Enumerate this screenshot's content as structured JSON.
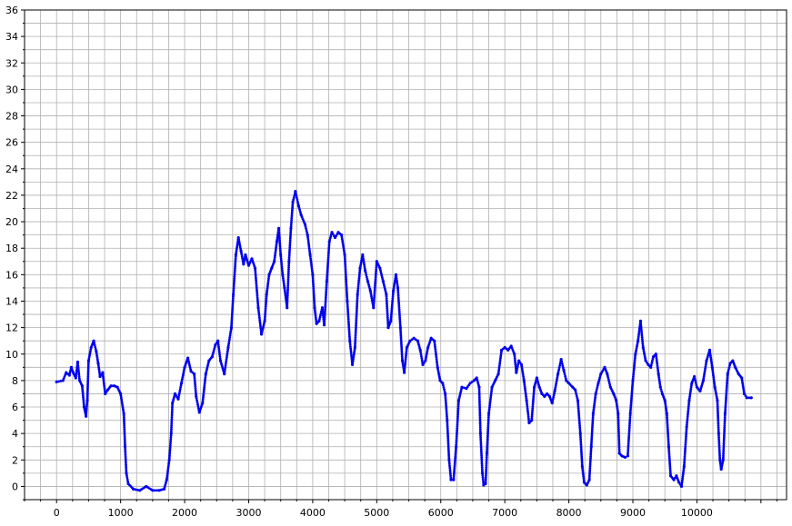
{
  "chart_data": {
    "type": "scatter",
    "title": "",
    "xlabel": "",
    "ylabel": "",
    "xlim": [
      -500,
      11400
    ],
    "ylim": [
      -1,
      36
    ],
    "grid": true,
    "x_ticks": [
      0,
      1000,
      2000,
      3000,
      4000,
      5000,
      6000,
      7000,
      8000,
      9000,
      10000
    ],
    "y_ticks": [
      0,
      2,
      4,
      6,
      8,
      10,
      12,
      14,
      16,
      18,
      20,
      22,
      24,
      26,
      28,
      30,
      32,
      34,
      36
    ],
    "series": [
      {
        "color": "#0000ee",
        "points": [
          [
            0,
            7.9
          ],
          [
            100,
            8.0
          ],
          [
            150,
            8.6
          ],
          [
            200,
            8.4
          ],
          [
            230,
            9.0
          ],
          [
            260,
            8.6
          ],
          [
            300,
            8.2
          ],
          [
            330,
            9.4
          ],
          [
            360,
            8.0
          ],
          [
            400,
            7.6
          ],
          [
            430,
            6.0
          ],
          [
            460,
            5.3
          ],
          [
            480,
            6.5
          ],
          [
            500,
            9.5
          ],
          [
            540,
            10.5
          ],
          [
            580,
            11.0
          ],
          [
            620,
            10.2
          ],
          [
            650,
            9.3
          ],
          [
            680,
            8.3
          ],
          [
            720,
            8.6
          ],
          [
            760,
            7.0
          ],
          [
            800,
            7.3
          ],
          [
            850,
            7.6
          ],
          [
            900,
            7.6
          ],
          [
            950,
            7.5
          ],
          [
            1000,
            7.0
          ],
          [
            1050,
            5.5
          ],
          [
            1070,
            3.0
          ],
          [
            1090,
            1.0
          ],
          [
            1120,
            0.2
          ],
          [
            1200,
            -0.2
          ],
          [
            1300,
            -0.3
          ],
          [
            1400,
            0.0
          ],
          [
            1500,
            -0.3
          ],
          [
            1600,
            -0.3
          ],
          [
            1680,
            -0.2
          ],
          [
            1720,
            0.5
          ],
          [
            1760,
            2.0
          ],
          [
            1790,
            4.0
          ],
          [
            1810,
            6.3
          ],
          [
            1850,
            7.0
          ],
          [
            1900,
            6.6
          ],
          [
            1950,
            7.8
          ],
          [
            2000,
            9.0
          ],
          [
            2050,
            9.7
          ],
          [
            2100,
            8.7
          ],
          [
            2150,
            8.5
          ],
          [
            2180,
            6.8
          ],
          [
            2230,
            5.6
          ],
          [
            2280,
            6.3
          ],
          [
            2330,
            8.5
          ],
          [
            2380,
            9.5
          ],
          [
            2430,
            9.8
          ],
          [
            2480,
            10.7
          ],
          [
            2520,
            11.0
          ],
          [
            2560,
            9.5
          ],
          [
            2620,
            8.5
          ],
          [
            2680,
            10.5
          ],
          [
            2730,
            12.0
          ],
          [
            2760,
            14.5
          ],
          [
            2800,
            17.5
          ],
          [
            2840,
            18.8
          ],
          [
            2880,
            17.8
          ],
          [
            2920,
            16.8
          ],
          [
            2950,
            17.5
          ],
          [
            3000,
            16.7
          ],
          [
            3050,
            17.2
          ],
          [
            3100,
            16.5
          ],
          [
            3150,
            13.5
          ],
          [
            3200,
            11.5
          ],
          [
            3250,
            12.5
          ],
          [
            3280,
            14.5
          ],
          [
            3320,
            16.0
          ],
          [
            3360,
            16.5
          ],
          [
            3400,
            17.0
          ],
          [
            3440,
            18.5
          ],
          [
            3470,
            19.5
          ],
          [
            3500,
            17.5
          ],
          [
            3530,
            16.0
          ],
          [
            3560,
            15.0
          ],
          [
            3600,
            13.5
          ],
          [
            3630,
            17.0
          ],
          [
            3660,
            19.5
          ],
          [
            3690,
            21.5
          ],
          [
            3730,
            22.3
          ],
          [
            3780,
            21.2
          ],
          [
            3820,
            20.5
          ],
          [
            3880,
            19.8
          ],
          [
            3920,
            19.0
          ],
          [
            3960,
            17.5
          ],
          [
            4000,
            16.0
          ],
          [
            4030,
            13.5
          ],
          [
            4060,
            12.3
          ],
          [
            4100,
            12.5
          ],
          [
            4150,
            13.5
          ],
          [
            4180,
            12.2
          ],
          [
            4220,
            15.5
          ],
          [
            4260,
            18.5
          ],
          [
            4300,
            19.2
          ],
          [
            4350,
            18.8
          ],
          [
            4400,
            19.2
          ],
          [
            4450,
            19.0
          ],
          [
            4500,
            17.5
          ],
          [
            4540,
            14.0
          ],
          [
            4580,
            11.0
          ],
          [
            4620,
            9.2
          ],
          [
            4660,
            10.5
          ],
          [
            4700,
            14.5
          ],
          [
            4740,
            16.5
          ],
          [
            4780,
            17.5
          ],
          [
            4820,
            16.3
          ],
          [
            4860,
            15.5
          ],
          [
            4900,
            14.8
          ],
          [
            4950,
            13.5
          ],
          [
            5000,
            17.0
          ],
          [
            5050,
            16.5
          ],
          [
            5100,
            15.5
          ],
          [
            5150,
            14.5
          ],
          [
            5180,
            12.0
          ],
          [
            5220,
            12.5
          ],
          [
            5260,
            14.8
          ],
          [
            5300,
            16.0
          ],
          [
            5330,
            15.0
          ],
          [
            5370,
            12.0
          ],
          [
            5400,
            9.5
          ],
          [
            5430,
            8.6
          ],
          [
            5470,
            10.5
          ],
          [
            5520,
            11.0
          ],
          [
            5580,
            11.2
          ],
          [
            5640,
            11.0
          ],
          [
            5680,
            10.3
          ],
          [
            5720,
            9.2
          ],
          [
            5760,
            9.5
          ],
          [
            5800,
            10.5
          ],
          [
            5850,
            11.2
          ],
          [
            5900,
            11.0
          ],
          [
            5950,
            9.0
          ],
          [
            5990,
            8.0
          ],
          [
            6030,
            7.8
          ],
          [
            6070,
            7.0
          ],
          [
            6100,
            5.0
          ],
          [
            6130,
            2.0
          ],
          [
            6160,
            0.5
          ],
          [
            6200,
            0.5
          ],
          [
            6240,
            3.0
          ],
          [
            6280,
            6.5
          ],
          [
            6330,
            7.5
          ],
          [
            6400,
            7.4
          ],
          [
            6460,
            7.8
          ],
          [
            6520,
            8.0
          ],
          [
            6560,
            8.2
          ],
          [
            6600,
            7.5
          ],
          [
            6620,
            4.0
          ],
          [
            6650,
            1.0
          ],
          [
            6670,
            0.1
          ],
          [
            6700,
            0.2
          ],
          [
            6720,
            2.5
          ],
          [
            6750,
            5.5
          ],
          [
            6800,
            7.5
          ],
          [
            6850,
            8.0
          ],
          [
            6900,
            8.5
          ],
          [
            6950,
            10.3
          ],
          [
            7000,
            10.5
          ],
          [
            7050,
            10.3
          ],
          [
            7100,
            10.6
          ],
          [
            7150,
            10.0
          ],
          [
            7180,
            8.6
          ],
          [
            7220,
            9.5
          ],
          [
            7260,
            9.2
          ],
          [
            7300,
            8.0
          ],
          [
            7340,
            6.5
          ],
          [
            7380,
            4.8
          ],
          [
            7420,
            5.0
          ],
          [
            7460,
            7.5
          ],
          [
            7500,
            8.2
          ],
          [
            7540,
            7.5
          ],
          [
            7580,
            7.0
          ],
          [
            7620,
            6.8
          ],
          [
            7660,
            7.0
          ],
          [
            7700,
            6.8
          ],
          [
            7740,
            6.3
          ],
          [
            7780,
            7.2
          ],
          [
            7830,
            8.5
          ],
          [
            7880,
            9.6
          ],
          [
            7920,
            8.8
          ],
          [
            7960,
            8.0
          ],
          [
            8000,
            7.8
          ],
          [
            8060,
            7.5
          ],
          [
            8100,
            7.3
          ],
          [
            8140,
            6.5
          ],
          [
            8180,
            4.0
          ],
          [
            8210,
            1.5
          ],
          [
            8240,
            0.3
          ],
          [
            8280,
            0.1
          ],
          [
            8320,
            0.5
          ],
          [
            8350,
            3.0
          ],
          [
            8380,
            5.5
          ],
          [
            8420,
            7.0
          ],
          [
            8460,
            7.8
          ],
          [
            8500,
            8.5
          ],
          [
            8560,
            9.0
          ],
          [
            8600,
            8.5
          ],
          [
            8650,
            7.5
          ],
          [
            8700,
            7.0
          ],
          [
            8740,
            6.5
          ],
          [
            8770,
            5.5
          ],
          [
            8790,
            2.5
          ],
          [
            8830,
            2.3
          ],
          [
            8880,
            2.2
          ],
          [
            8920,
            2.3
          ],
          [
            8960,
            5.5
          ],
          [
            9000,
            8.0
          ],
          [
            9040,
            10.0
          ],
          [
            9080,
            11.0
          ],
          [
            9120,
            12.5
          ],
          [
            9160,
            10.5
          ],
          [
            9200,
            9.5
          ],
          [
            9240,
            9.2
          ],
          [
            9280,
            9.0
          ],
          [
            9320,
            9.8
          ],
          [
            9360,
            10.0
          ],
          [
            9400,
            8.5
          ],
          [
            9430,
            7.5
          ],
          [
            9460,
            7.0
          ],
          [
            9500,
            6.5
          ],
          [
            9530,
            5.5
          ],
          [
            9560,
            3.0
          ],
          [
            9590,
            0.8
          ],
          [
            9640,
            0.5
          ],
          [
            9680,
            0.8
          ],
          [
            9720,
            0.3
          ],
          [
            9760,
            0.0
          ],
          [
            9800,
            1.5
          ],
          [
            9840,
            4.5
          ],
          [
            9880,
            6.5
          ],
          [
            9920,
            7.8
          ],
          [
            9960,
            8.3
          ],
          [
            10000,
            7.5
          ],
          [
            10050,
            7.2
          ],
          [
            10100,
            8.0
          ],
          [
            10150,
            9.5
          ],
          [
            10200,
            10.3
          ],
          [
            10240,
            9.0
          ],
          [
            10280,
            7.5
          ],
          [
            10320,
            6.5
          ],
          [
            10340,
            4.0
          ],
          [
            10360,
            2.0
          ],
          [
            10380,
            1.3
          ],
          [
            10410,
            2.0
          ],
          [
            10440,
            5.5
          ],
          [
            10480,
            8.5
          ],
          [
            10520,
            9.3
          ],
          [
            10560,
            9.5
          ],
          [
            10600,
            9.0
          ],
          [
            10650,
            8.5
          ],
          [
            10700,
            8.2
          ],
          [
            10740,
            7.0
          ],
          [
            10780,
            6.7
          ],
          [
            10850,
            6.7
          ]
        ]
      }
    ]
  }
}
